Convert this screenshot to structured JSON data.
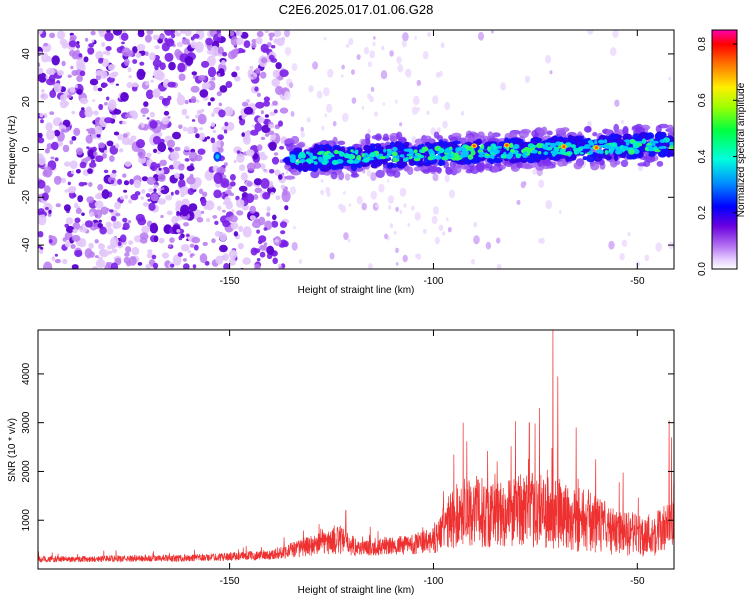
{
  "title": "C2E6.2025.017.01.06.G28",
  "chart_data": [
    {
      "type": "heatmap",
      "name": "spectrogram",
      "xlabel": "Height of straight line (km)",
      "ylabel": "Frequency (Hz)",
      "xlim": [
        -197,
        -41
      ],
      "ylim": [
        -50,
        50
      ],
      "xticks": [
        -150,
        -100,
        -50
      ],
      "yticks": [
        -40,
        -20,
        0,
        20,
        40
      ],
      "colorbar": {
        "label": "Normalized spectral amplitude",
        "range": [
          0.0,
          0.85
        ],
        "ticks": [
          "0.0",
          "0.2",
          "0.4",
          "0.6",
          "0.8"
        ],
        "tick_values": [
          0.0,
          0.2,
          0.4,
          0.6,
          0.8
        ],
        "colormap": [
          "#ffffff",
          "#e4c8ff",
          "#8a2be2",
          "#5a00d0",
          "#0000ff",
          "#00a0ff",
          "#00ffcc",
          "#00ff00",
          "#ffff00",
          "#ff8000",
          "#ff0000",
          "#ff00a0"
        ]
      },
      "features": {
        "noise_region_end": -136,
        "tone_start": -136,
        "tone_freq_start": -4,
        "tone_freq_end": 2
      }
    },
    {
      "type": "line",
      "name": "snr",
      "xlabel": "Height of straight line (km)",
      "ylabel": "SNR (10 * v/v)",
      "xlim": [
        -197,
        -41
      ],
      "ylim": [
        0,
        4900
      ],
      "xticks": [
        -150,
        -100,
        -50
      ],
      "yticks": [
        1000,
        2000,
        3000,
        4000
      ],
      "color": "#ee3030",
      "envelope": [
        {
          "x": -197,
          "base": 180,
          "amp": 120
        },
        {
          "x": -160,
          "base": 200,
          "amp": 140
        },
        {
          "x": -140,
          "base": 260,
          "amp": 200
        },
        {
          "x": -134,
          "base": 350,
          "amp": 350
        },
        {
          "x": -128,
          "base": 450,
          "amp": 450
        },
        {
          "x": -123,
          "base": 500,
          "amp": 600
        },
        {
          "x": -118,
          "base": 380,
          "amp": 320
        },
        {
          "x": -108,
          "base": 420,
          "amp": 380
        },
        {
          "x": -100,
          "base": 500,
          "amp": 520
        },
        {
          "x": -96,
          "base": 800,
          "amp": 1200
        },
        {
          "x": -92,
          "base": 1000,
          "amp": 1500
        },
        {
          "x": -85,
          "base": 900,
          "amp": 1400
        },
        {
          "x": -78,
          "base": 1000,
          "amp": 1500
        },
        {
          "x": -70,
          "base": 900,
          "amp": 1600
        },
        {
          "x": -62,
          "base": 800,
          "amp": 1300
        },
        {
          "x": -55,
          "base": 600,
          "amp": 900
        },
        {
          "x": -48,
          "base": 550,
          "amp": 900
        },
        {
          "x": -41,
          "base": 700,
          "amp": 1100
        }
      ],
      "peaks": [
        {
          "x": -70.7,
          "y": 4900
        },
        {
          "x": -69.5,
          "y": 3950
        },
        {
          "x": -74.0,
          "y": 3300
        },
        {
          "x": -76.5,
          "y": 3000
        },
        {
          "x": -65.0,
          "y": 2900
        },
        {
          "x": -42.2,
          "y": 3050
        },
        {
          "x": -41.6,
          "y": 2700
        },
        {
          "x": -121.5,
          "y": 1200
        }
      ]
    }
  ]
}
